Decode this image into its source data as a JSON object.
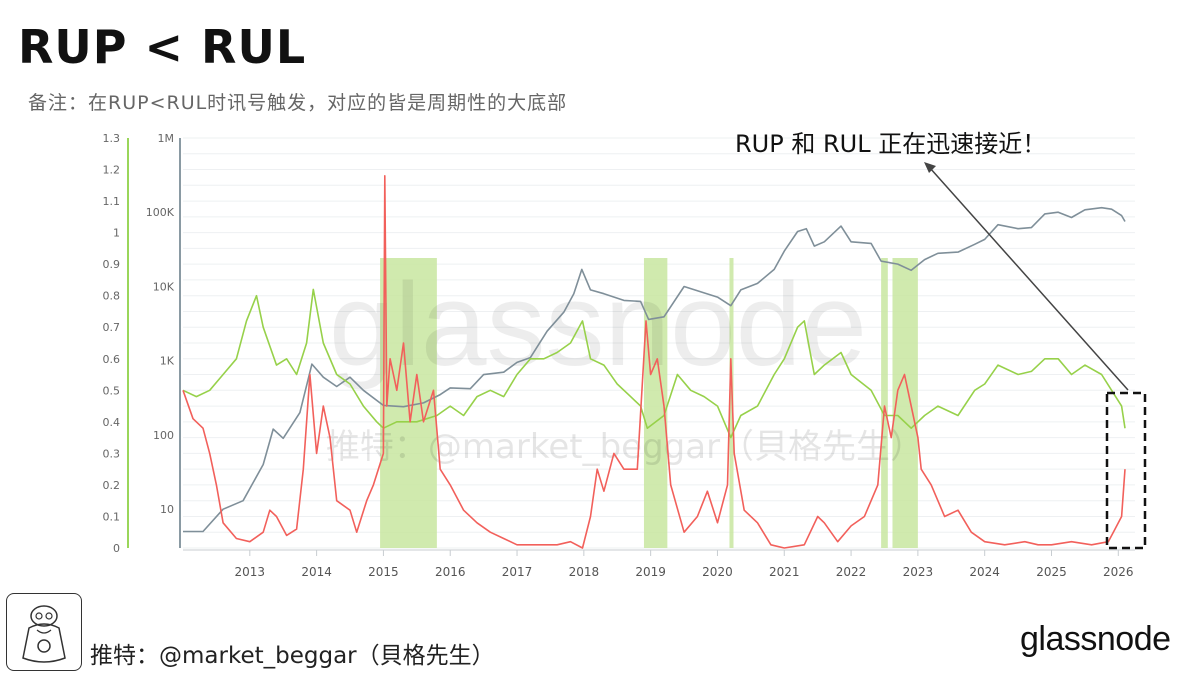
{
  "title": "RUP < RUL",
  "subtitle": "备注：在RUP<RUL时讯号触发，对应的皆是周期性的大底部",
  "annotation": "RUP 和 RUL 正在迅速接近！",
  "watermark_main": "glassnode",
  "watermark_credit": "推特：@market_beggar（貝格先生）",
  "footer_credit": "推特：@market_beggar（貝格先生）",
  "brand": "glassnode",
  "colors": {
    "price": "#7f8f99",
    "rup": "#f2605b",
    "rul": "#97d14a",
    "signal_band": "#c8e6a0",
    "rul_axis": "#9ad65a",
    "price_axis": "#8a9aa3"
  },
  "chart_data": {
    "type": "line",
    "x_ticks": [
      "2013",
      "2014",
      "2015",
      "2016",
      "2017",
      "2018",
      "2019",
      "2020",
      "2021",
      "2022",
      "2023",
      "2024",
      "2025",
      "2026"
    ],
    "x_range": [
      2012.0,
      2026.25
    ],
    "left_axis": {
      "ticks": [
        "1.3",
        "1.2",
        "1.1",
        "1",
        "0.9",
        "0.8",
        "0.7",
        "0.6",
        "0.5",
        "0.4",
        "0.3",
        "0.2",
        "0.1",
        "0"
      ],
      "range": [
        0,
        1.3
      ]
    },
    "price_axis": {
      "ticks": [
        "1M",
        "100K",
        "10K",
        "1K",
        "100",
        "10"
      ],
      "range": [
        3,
        1000000
      ],
      "scale": "log"
    },
    "signal_periods": [
      [
        2014.95,
        2015.8
      ],
      [
        2018.9,
        2019.25
      ],
      [
        2020.18,
        2020.24
      ],
      [
        2022.45,
        2022.55
      ],
      [
        2022.62,
        2023.0
      ]
    ],
    "series": [
      {
        "key": "price",
        "axis": "price",
        "points": [
          [
            2012.0,
            5
          ],
          [
            2012.3,
            5
          ],
          [
            2012.6,
            10
          ],
          [
            2012.9,
            13
          ],
          [
            2013.2,
            40
          ],
          [
            2013.35,
            120
          ],
          [
            2013.5,
            90
          ],
          [
            2013.75,
            200
          ],
          [
            2013.93,
            900
          ],
          [
            2014.1,
            600
          ],
          [
            2014.3,
            450
          ],
          [
            2014.5,
            600
          ],
          [
            2014.7,
            400
          ],
          [
            2015.0,
            250
          ],
          [
            2015.3,
            240
          ],
          [
            2015.6,
            270
          ],
          [
            2015.85,
            350
          ],
          [
            2016.0,
            430
          ],
          [
            2016.3,
            420
          ],
          [
            2016.5,
            650
          ],
          [
            2016.8,
            700
          ],
          [
            2017.0,
            950
          ],
          [
            2017.2,
            1100
          ],
          [
            2017.45,
            2500
          ],
          [
            2017.7,
            4500
          ],
          [
            2017.85,
            8000
          ],
          [
            2017.97,
            17000
          ],
          [
            2018.1,
            9000
          ],
          [
            2018.3,
            8000
          ],
          [
            2018.6,
            6500
          ],
          [
            2018.85,
            6300
          ],
          [
            2018.97,
            3600
          ],
          [
            2019.2,
            3900
          ],
          [
            2019.5,
            10000
          ],
          [
            2019.8,
            8200
          ],
          [
            2020.0,
            7200
          ],
          [
            2020.2,
            5500
          ],
          [
            2020.35,
            9000
          ],
          [
            2020.6,
            11000
          ],
          [
            2020.85,
            17000
          ],
          [
            2021.0,
            30000
          ],
          [
            2021.2,
            55000
          ],
          [
            2021.33,
            60000
          ],
          [
            2021.45,
            35000
          ],
          [
            2021.6,
            40000
          ],
          [
            2021.85,
            65000
          ],
          [
            2022.0,
            40000
          ],
          [
            2022.3,
            38000
          ],
          [
            2022.45,
            22000
          ],
          [
            2022.7,
            20000
          ],
          [
            2022.9,
            16500
          ],
          [
            2023.1,
            23000
          ],
          [
            2023.3,
            28000
          ],
          [
            2023.6,
            29000
          ],
          [
            2023.85,
            37000
          ],
          [
            2024.0,
            43000
          ],
          [
            2024.2,
            68000
          ],
          [
            2024.5,
            60000
          ],
          [
            2024.7,
            62000
          ],
          [
            2024.9,
            95000
          ],
          [
            2025.1,
            100000
          ],
          [
            2025.3,
            85000
          ],
          [
            2025.5,
            108000
          ],
          [
            2025.75,
            115000
          ],
          [
            2025.9,
            110000
          ],
          [
            2026.05,
            90000
          ],
          [
            2026.1,
            75000
          ]
        ]
      },
      {
        "key": "rup",
        "axis": "left",
        "points": [
          [
            2012.0,
            0.5
          ],
          [
            2012.15,
            0.41
          ],
          [
            2012.3,
            0.38
          ],
          [
            2012.4,
            0.3
          ],
          [
            2012.5,
            0.2
          ],
          [
            2012.6,
            0.08
          ],
          [
            2012.8,
            0.03
          ],
          [
            2013.0,
            0.02
          ],
          [
            2013.2,
            0.05
          ],
          [
            2013.3,
            0.12
          ],
          [
            2013.4,
            0.1
          ],
          [
            2013.55,
            0.04
          ],
          [
            2013.7,
            0.06
          ],
          [
            2013.8,
            0.25
          ],
          [
            2013.9,
            0.55
          ],
          [
            2014.0,
            0.3
          ],
          [
            2014.1,
            0.45
          ],
          [
            2014.2,
            0.35
          ],
          [
            2014.3,
            0.15
          ],
          [
            2014.5,
            0.12
          ],
          [
            2014.6,
            0.05
          ],
          [
            2014.75,
            0.15
          ],
          [
            2014.85,
            0.2
          ],
          [
            2015.0,
            0.3
          ],
          [
            2015.02,
            1.18
          ],
          [
            2015.05,
            0.45
          ],
          [
            2015.1,
            0.6
          ],
          [
            2015.2,
            0.5
          ],
          [
            2015.3,
            0.65
          ],
          [
            2015.4,
            0.4
          ],
          [
            2015.5,
            0.55
          ],
          [
            2015.6,
            0.4
          ],
          [
            2015.75,
            0.5
          ],
          [
            2015.85,
            0.25
          ],
          [
            2016.0,
            0.2
          ],
          [
            2016.2,
            0.12
          ],
          [
            2016.4,
            0.08
          ],
          [
            2016.6,
            0.05
          ],
          [
            2016.8,
            0.03
          ],
          [
            2017.0,
            0.01
          ],
          [
            2017.3,
            0.01
          ],
          [
            2017.6,
            0.01
          ],
          [
            2017.8,
            0.02
          ],
          [
            2017.98,
            0.0
          ],
          [
            2018.1,
            0.1
          ],
          [
            2018.2,
            0.25
          ],
          [
            2018.3,
            0.18
          ],
          [
            2018.45,
            0.3
          ],
          [
            2018.6,
            0.25
          ],
          [
            2018.8,
            0.25
          ],
          [
            2018.93,
            0.72
          ],
          [
            2019.0,
            0.55
          ],
          [
            2019.1,
            0.6
          ],
          [
            2019.2,
            0.45
          ],
          [
            2019.3,
            0.2
          ],
          [
            2019.5,
            0.05
          ],
          [
            2019.7,
            0.1
          ],
          [
            2019.85,
            0.18
          ],
          [
            2020.0,
            0.08
          ],
          [
            2020.15,
            0.2
          ],
          [
            2020.2,
            0.6
          ],
          [
            2020.25,
            0.3
          ],
          [
            2020.4,
            0.12
          ],
          [
            2020.6,
            0.08
          ],
          [
            2020.8,
            0.01
          ],
          [
            2021.0,
            0.0
          ],
          [
            2021.3,
            0.01
          ],
          [
            2021.5,
            0.1
          ],
          [
            2021.6,
            0.08
          ],
          [
            2021.8,
            0.02
          ],
          [
            2022.0,
            0.07
          ],
          [
            2022.2,
            0.1
          ],
          [
            2022.4,
            0.2
          ],
          [
            2022.5,
            0.45
          ],
          [
            2022.6,
            0.35
          ],
          [
            2022.7,
            0.5
          ],
          [
            2022.8,
            0.55
          ],
          [
            2022.9,
            0.45
          ],
          [
            2023.0,
            0.35
          ],
          [
            2023.05,
            0.25
          ],
          [
            2023.2,
            0.2
          ],
          [
            2023.4,
            0.1
          ],
          [
            2023.6,
            0.12
          ],
          [
            2023.8,
            0.05
          ],
          [
            2024.0,
            0.02
          ],
          [
            2024.3,
            0.01
          ],
          [
            2024.6,
            0.02
          ],
          [
            2024.8,
            0.01
          ],
          [
            2025.0,
            0.01
          ],
          [
            2025.3,
            0.02
          ],
          [
            2025.6,
            0.01
          ],
          [
            2025.85,
            0.02
          ],
          [
            2025.95,
            0.06
          ],
          [
            2026.05,
            0.1
          ],
          [
            2026.1,
            0.25
          ]
        ]
      },
      {
        "key": "rul",
        "axis": "left",
        "points": [
          [
            2012.0,
            0.5
          ],
          [
            2012.2,
            0.48
          ],
          [
            2012.4,
            0.5
          ],
          [
            2012.6,
            0.55
          ],
          [
            2012.8,
            0.6
          ],
          [
            2012.95,
            0.72
          ],
          [
            2013.1,
            0.8
          ],
          [
            2013.2,
            0.7
          ],
          [
            2013.4,
            0.58
          ],
          [
            2013.55,
            0.6
          ],
          [
            2013.7,
            0.55
          ],
          [
            2013.85,
            0.65
          ],
          [
            2013.95,
            0.82
          ],
          [
            2014.1,
            0.65
          ],
          [
            2014.3,
            0.55
          ],
          [
            2014.5,
            0.52
          ],
          [
            2014.7,
            0.45
          ],
          [
            2014.9,
            0.4
          ],
          [
            2015.0,
            0.38
          ],
          [
            2015.2,
            0.4
          ],
          [
            2015.5,
            0.4
          ],
          [
            2015.8,
            0.42
          ],
          [
            2016.0,
            0.45
          ],
          [
            2016.2,
            0.42
          ],
          [
            2016.4,
            0.48
          ],
          [
            2016.6,
            0.5
          ],
          [
            2016.8,
            0.48
          ],
          [
            2017.0,
            0.55
          ],
          [
            2017.2,
            0.6
          ],
          [
            2017.4,
            0.6
          ],
          [
            2017.6,
            0.62
          ],
          [
            2017.8,
            0.65
          ],
          [
            2017.98,
            0.72
          ],
          [
            2018.1,
            0.6
          ],
          [
            2018.3,
            0.58
          ],
          [
            2018.5,
            0.52
          ],
          [
            2018.7,
            0.48
          ],
          [
            2018.85,
            0.45
          ],
          [
            2018.95,
            0.38
          ],
          [
            2019.2,
            0.42
          ],
          [
            2019.4,
            0.55
          ],
          [
            2019.6,
            0.5
          ],
          [
            2019.8,
            0.48
          ],
          [
            2020.0,
            0.45
          ],
          [
            2020.2,
            0.35
          ],
          [
            2020.35,
            0.42
          ],
          [
            2020.6,
            0.45
          ],
          [
            2020.85,
            0.55
          ],
          [
            2021.0,
            0.6
          ],
          [
            2021.2,
            0.7
          ],
          [
            2021.3,
            0.72
          ],
          [
            2021.45,
            0.55
          ],
          [
            2021.6,
            0.58
          ],
          [
            2021.85,
            0.62
          ],
          [
            2022.0,
            0.55
          ],
          [
            2022.3,
            0.5
          ],
          [
            2022.5,
            0.42
          ],
          [
            2022.7,
            0.42
          ],
          [
            2022.9,
            0.38
          ],
          [
            2023.1,
            0.42
          ],
          [
            2023.3,
            0.45
          ],
          [
            2023.6,
            0.42
          ],
          [
            2023.85,
            0.5
          ],
          [
            2024.0,
            0.52
          ],
          [
            2024.2,
            0.58
          ],
          [
            2024.5,
            0.55
          ],
          [
            2024.7,
            0.56
          ],
          [
            2024.9,
            0.6
          ],
          [
            2025.1,
            0.6
          ],
          [
            2025.3,
            0.55
          ],
          [
            2025.5,
            0.58
          ],
          [
            2025.75,
            0.55
          ],
          [
            2025.9,
            0.5
          ],
          [
            2026.05,
            0.45
          ],
          [
            2026.1,
            0.38
          ]
        ]
      }
    ]
  }
}
